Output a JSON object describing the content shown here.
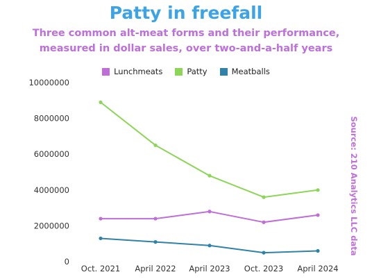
{
  "colors": {
    "title": "#3ba3e6",
    "subtitle": "#bd6fdb",
    "source": "#bd6fdb",
    "axis": "#333333"
  },
  "chart_data": {
    "type": "line",
    "title": "Patty in freefall",
    "subtitle": "Three common alt-meat forms and their performance, measured in dollar sales, over two-and-a-half years",
    "source": "Source: 210 Analytics LLC data",
    "categories": [
      "Oct. 2021",
      "April 2022",
      "April 2023",
      "Oct. 2023",
      "April 2024"
    ],
    "ylim": [
      0,
      10000000
    ],
    "yticks": [
      "10000000",
      "8000000",
      "6000000",
      "4000000",
      "2000000",
      "0"
    ],
    "grid": false,
    "legend_position": "top",
    "series": [
      {
        "name": "Lunchmeats",
        "color": "#bf6dd8",
        "values": [
          2400000,
          2400000,
          2800000,
          2200000,
          2600000
        ]
      },
      {
        "name": "Patty",
        "color": "#8cd657",
        "values": [
          8900000,
          6500000,
          4800000,
          3600000,
          4000000
        ]
      },
      {
        "name": "Meatballs",
        "color": "#2f82a8",
        "values": [
          1300000,
          1100000,
          900000,
          500000,
          600000
        ]
      }
    ]
  }
}
